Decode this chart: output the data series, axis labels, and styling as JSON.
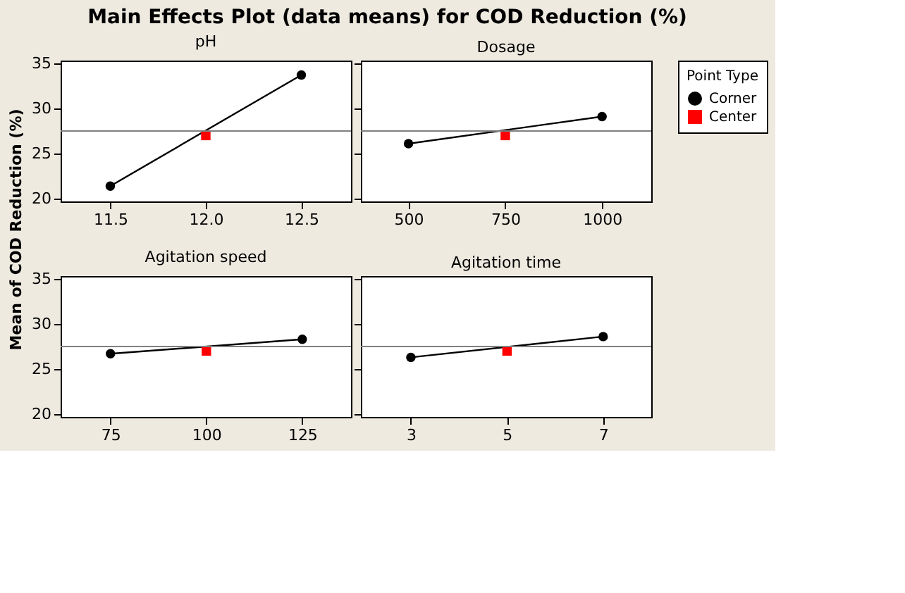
{
  "chart_data": [
    {
      "type": "line",
      "title": "Main Effects Plot (data means) for COD Reduction (%)",
      "xlabel": "pH",
      "ylabel": "Mean of COD Reduction (%)",
      "legend_title": "Point Type",
      "legend": "right",
      "xlim": [
        11.24,
        12.76
      ],
      "xticks": [
        11.5,
        {
          "value": 12,
          "label": "12.0"
        },
        12.5
      ],
      "ylim": [
        19.7,
        35.3
      ],
      "yticks": [
        20,
        25,
        30,
        35
      ],
      "series": [
        {
          "name": "Corner",
          "type": "line",
          "color": "#000000",
          "marker": "circle",
          "line_style": "solid",
          "x": [
            11.5,
            12.5
          ],
          "values": [
            21.4,
            33.7
          ]
        },
        {
          "name": "Center",
          "type": "scatter",
          "color": "#ff0000",
          "marker": "square",
          "x": [
            12
          ],
          "values": [
            27.0
          ]
        }
      ],
      "ref_lines": [
        {
          "axis": "y",
          "value": 27.5,
          "color": "#808080"
        }
      ]
    },
    {
      "type": "line",
      "xlabel": "Dosage",
      "tick_labels": "x",
      "xlim": [
        377,
        1127
      ],
      "xticks": [
        500,
        750,
        1000
      ],
      "ylim": [
        19.7,
        35.3
      ],
      "yticks": [
        20,
        25,
        30,
        35
      ],
      "series": [
        {
          "name": "Corner",
          "type": "line",
          "color": "#000000",
          "marker": "circle",
          "line_style": "solid",
          "x": [
            500,
            1000
          ],
          "values": [
            26.1,
            29.1
          ]
        },
        {
          "name": "Center",
          "type": "scatter",
          "color": "#ff0000",
          "marker": "square",
          "x": [
            750
          ],
          "values": [
            27.0
          ]
        }
      ],
      "ref_lines": [
        {
          "axis": "y",
          "value": 27.5,
          "color": "#808080"
        }
      ]
    },
    {
      "type": "line",
      "xlabel": "Agitation speed",
      "xlim": [
        62,
        137.7
      ],
      "xticks": [
        75,
        100,
        125
      ],
      "ylim": [
        19.7,
        35.3
      ],
      "yticks": [
        20,
        25,
        30,
        35
      ],
      "series": [
        {
          "name": "Corner",
          "type": "line",
          "color": "#000000",
          "marker": "circle",
          "line_style": "solid",
          "x": [
            75,
            125
          ],
          "values": [
            26.7,
            28.3
          ]
        },
        {
          "name": "Center",
          "type": "scatter",
          "color": "#ff0000",
          "marker": "square",
          "x": [
            100
          ],
          "values": [
            27.0
          ]
        }
      ],
      "ref_lines": [
        {
          "axis": "y",
          "value": 27.5,
          "color": "#808080"
        }
      ]
    },
    {
      "type": "line",
      "xlabel": "Agitation time",
      "tick_labels": "x",
      "xlim": [
        1.96,
        8.0
      ],
      "xticks": [
        3,
        5,
        7
      ],
      "ylim": [
        19.7,
        35.3
      ],
      "yticks": [
        20,
        25,
        30,
        35
      ],
      "series": [
        {
          "name": "Corner",
          "type": "line",
          "color": "#000000",
          "marker": "circle",
          "line_style": "solid",
          "x": [
            3,
            7
          ],
          "values": [
            26.3,
            28.6
          ]
        },
        {
          "name": "Center",
          "type": "scatter",
          "color": "#ff0000",
          "marker": "square",
          "x": [
            5
          ],
          "values": [
            27.0
          ]
        }
      ],
      "ref_lines": [
        {
          "axis": "y",
          "value": 27.5,
          "color": "#808080"
        }
      ]
    }
  ]
}
